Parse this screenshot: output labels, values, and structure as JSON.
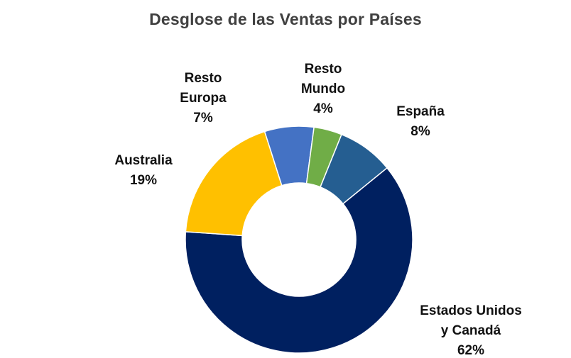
{
  "chart_data": {
    "type": "pie",
    "title": "Desglose de las Ventas por Países",
    "categories": [
      "España",
      "Estados Unidos y Canadá",
      "Australia",
      "Resto Europa",
      "Resto Mundo"
    ],
    "values": [
      8,
      62,
      19,
      7,
      4
    ],
    "value_labels": [
      "8%",
      "62%",
      "19%",
      "7%",
      "4%"
    ],
    "label_lines": [
      [
        "España"
      ],
      [
        "Estados Unidos",
        "y Canadá"
      ],
      [
        "Australia"
      ],
      [
        "Resto",
        "Europa"
      ],
      [
        "Resto",
        "Mundo"
      ]
    ],
    "colors": [
      "#255e91",
      "#002060",
      "#ffc000",
      "#4472c4",
      "#70ad47"
    ],
    "start_angle_deg": 22,
    "hole_ratio": 0.5,
    "legend": "none"
  }
}
